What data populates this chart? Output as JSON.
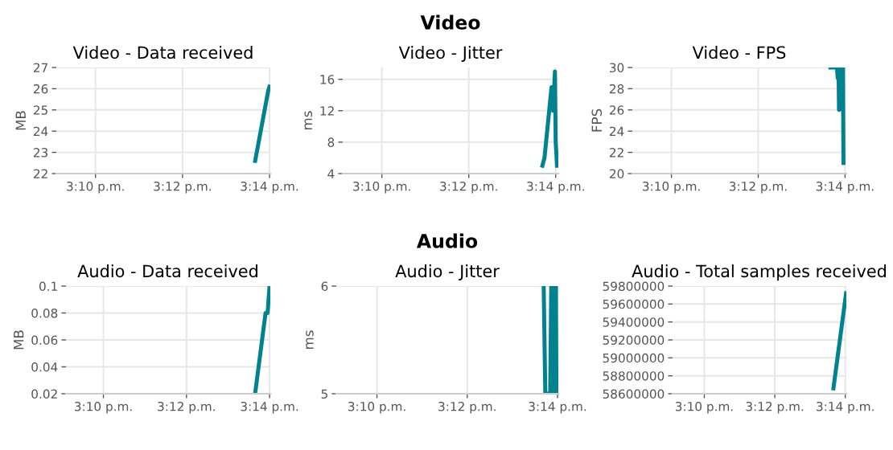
{
  "chart_data": [
    {
      "type": "line",
      "title": "Video - Data received",
      "ylabel": "MB",
      "x": [
        15.2278,
        15.2328,
        15.2333
      ],
      "series": [
        {
          "color": "#00838f",
          "values": [
            22.6,
            25.9,
            26.1
          ]
        }
      ],
      "xlim": [
        15.1517,
        15.2336
      ],
      "xticks": [
        {
          "value": 15.1667,
          "label": "3:10 p.m."
        },
        {
          "value": 15.2,
          "label": "3:12 p.m."
        },
        {
          "value": 15.2333,
          "label": "3:14 p.m."
        }
      ],
      "ylim": [
        22,
        27
      ],
      "yticks": [
        22,
        23,
        24,
        25,
        26,
        27
      ],
      "grid": true,
      "legend": false
    },
    {
      "type": "line",
      "title": "Video - Jitter",
      "ylabel": "ms",
      "annotations": [
        "Video"
      ],
      "x": [
        15.2282,
        15.229,
        15.2317,
        15.2323,
        15.233,
        15.2333,
        15.2338
      ],
      "series": [
        {
          "color": "#00838f",
          "values": [
            5,
            6,
            15,
            12,
            17,
            8,
            5
          ]
        }
      ],
      "xlim": [
        15.1517,
        15.2343
      ],
      "xticks": [
        {
          "value": 15.1667,
          "label": "3:10 p.m."
        },
        {
          "value": 15.2,
          "label": "3:12 p.m."
        },
        {
          "value": 15.2333,
          "label": "3:14 p.m."
        }
      ],
      "ylim": [
        4,
        17.5
      ],
      "yticks": [
        4,
        8,
        12,
        16
      ],
      "grid": true,
      "legend": false
    },
    {
      "type": "line",
      "title": "Video - FPS",
      "ylabel": "FPS",
      "x": [
        15.2277,
        15.2302,
        15.2305,
        15.2308,
        15.231,
        15.2313,
        15.2317,
        15.232,
        15.2322,
        15.2325,
        15.2327
      ],
      "series": [
        {
          "color": "#00838f",
          "values": [
            30,
            30,
            29,
            30,
            26,
            30,
            27,
            30,
            26,
            30,
            21
          ]
        }
      ],
      "xlim": [
        15.1517,
        15.2338
      ],
      "xticks": [
        {
          "value": 15.1667,
          "label": "3:10 p.m."
        },
        {
          "value": 15.2,
          "label": "3:12 p.m."
        },
        {
          "value": 15.2333,
          "label": "3:14 p.m."
        }
      ],
      "ylim": [
        20,
        30
      ],
      "yticks": [
        20,
        22,
        24,
        26,
        28,
        30
      ],
      "grid": true,
      "legend": false
    },
    {
      "type": "line",
      "title": "Audio - Data received",
      "ylabel": "MB",
      "x": [
        15.2275,
        15.2317,
        15.2325,
        15.2333
      ],
      "series": [
        {
          "color": "#00838f",
          "values": [
            0.02,
            0.08,
            0.08,
            0.1
          ]
        }
      ],
      "xlim": [
        15.1517,
        15.2336
      ],
      "xticks": [
        {
          "value": 15.1667,
          "label": "3:10 p.m."
        },
        {
          "value": 15.2,
          "label": "3:12 p.m."
        },
        {
          "value": 15.2333,
          "label": "3:14 p.m."
        }
      ],
      "ylim": [
        0.02,
        0.1
      ],
      "yticks": [
        0.02,
        0.04,
        0.06,
        0.08,
        0.1
      ],
      "grid": true,
      "legend": false
    },
    {
      "type": "line",
      "title": "Audio - Jitter",
      "ylabel": "ms",
      "annotations": [
        "Audio"
      ],
      "x": [
        15.2282,
        15.2288,
        15.2306,
        15.231,
        15.2316,
        15.2318,
        15.2322,
        15.2327,
        15.2329
      ],
      "series": [
        {
          "color": "#00838f",
          "values": [
            6,
            5,
            5,
            6,
            6,
            5,
            6,
            6,
            5
          ]
        }
      ],
      "xlim": [
        15.1517,
        15.2336
      ],
      "xticks": [
        {
          "value": 15.1667,
          "label": "3:10 p.m."
        },
        {
          "value": 15.2,
          "label": "3:12 p.m."
        },
        {
          "value": 15.2333,
          "label": "3:14 p.m."
        }
      ],
      "ylim": [
        5,
        6
      ],
      "yticks": [
        5,
        6
      ],
      "grid": true,
      "legend": false
    },
    {
      "type": "line",
      "title": "Audio - Total samples received",
      "x": [
        15.2277,
        15.2337
      ],
      "series": [
        {
          "color": "#00838f",
          "values": [
            58660000,
            59720000
          ]
        }
      ],
      "xlim": [
        15.1517,
        15.2338
      ],
      "xticks": [
        {
          "value": 15.1667,
          "label": "3:10 p.m."
        },
        {
          "value": 15.2,
          "label": "3:12 p.m."
        },
        {
          "value": 15.2333,
          "label": "3:14 p.m."
        }
      ],
      "ylim": [
        58600000,
        59800000
      ],
      "yticks": [
        58600000,
        58800000,
        59000000,
        59200000,
        59400000,
        59600000,
        59800000
      ],
      "grid": true,
      "legend": false
    }
  ]
}
